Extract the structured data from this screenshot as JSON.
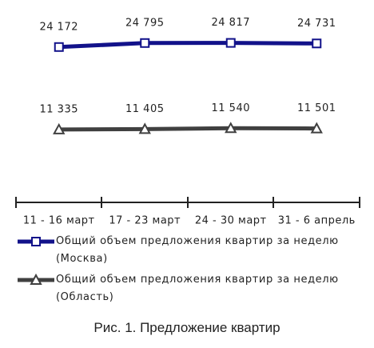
{
  "chart_data": {
    "type": "line",
    "caption": "Рис. 1. Предложение квартир",
    "categories": [
      "11 - 16 март",
      "17 - 23 март",
      "24 - 30 март",
      "31 - 6 апрель"
    ],
    "series": [
      {
        "name": "Общий объем предложения квартир за неделю (Москва)",
        "color": "#12128a",
        "marker": "square",
        "values": [
          24172,
          24795,
          24817,
          24731
        ],
        "value_labels": [
          "24 172",
          "24 795",
          "24 817",
          "24 731"
        ]
      },
      {
        "name": "Общий объем предложения квартир за неделю (Область)",
        "color": "#404040",
        "marker": "triangle",
        "values": [
          11335,
          11405,
          11540,
          11501
        ],
        "value_labels": [
          "11 335",
          "11 405",
          "11 540",
          "11 501"
        ]
      }
    ],
    "ylim": [
      0,
      29000
    ]
  }
}
